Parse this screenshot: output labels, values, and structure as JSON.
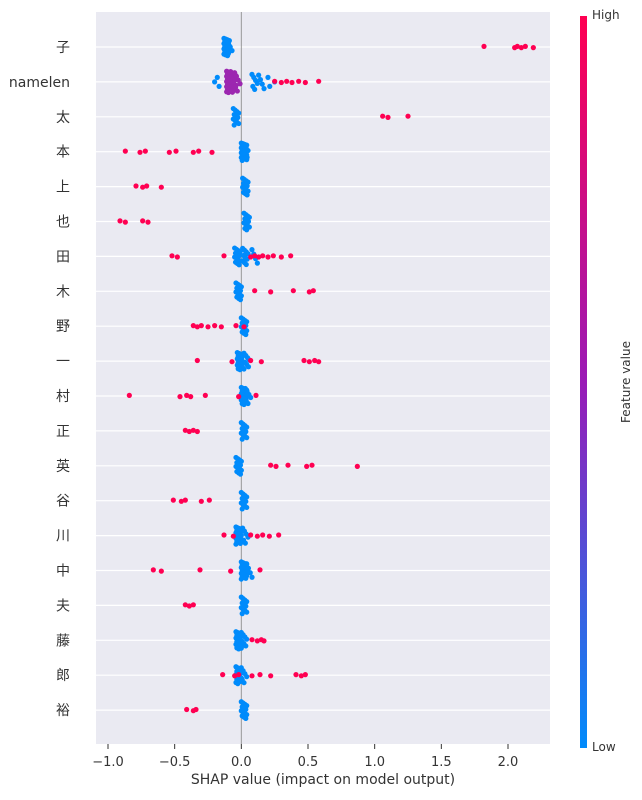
{
  "chart_data": {
    "type": "scatter",
    "subtype": "shap-beeswarm",
    "xlabel": "SHAP value (impact on model output)",
    "xlim": [
      -1.1,
      2.32
    ],
    "xticks": [
      -1.0,
      -0.5,
      0.0,
      0.5,
      1.0,
      1.5,
      2.0
    ],
    "xtick_labels": [
      "−1.0",
      "−0.5",
      "0.0",
      "0.5",
      "1.0",
      "1.5",
      "2.0"
    ],
    "colorbar": {
      "label": "Feature value",
      "high": "High",
      "low": "Low",
      "high_color": "#ff0052",
      "low_color": "#008bfb"
    },
    "background": "#eaeaf2",
    "features": [
      {
        "name": "子",
        "low": [
          [
            -0.11,
            24
          ],
          [
            -0.09,
            5
          ]
        ],
        "high": [
          1.82,
          2.05,
          2.07,
          2.1,
          2.13,
          2.19
        ]
      },
      {
        "name": "namelen",
        "low": [
          [
            -0.18,
            1
          ],
          [
            -0.16,
            2
          ],
          [
            0.1,
            6
          ],
          [
            0.15,
            4
          ],
          [
            0.22,
            2
          ],
          [
            0.27,
            1
          ]
        ],
        "mid": [
          [
            -0.09,
            30
          ],
          [
            -0.06,
            16
          ],
          [
            -0.03,
            6
          ]
        ],
        "high": [
          0.25,
          0.3,
          0.34,
          0.38,
          0.43,
          0.48,
          0.58
        ]
      },
      {
        "name": "太",
        "low": [
          [
            -0.04,
            12
          ]
        ],
        "high": [
          1.06,
          1.1,
          1.25
        ]
      },
      {
        "name": "本",
        "low": [
          [
            0.02,
            26
          ],
          [
            0.03,
            8
          ]
        ],
        "high": [
          -0.87,
          -0.76,
          -0.72,
          -0.54,
          -0.49,
          -0.36,
          -0.32,
          -0.22
        ]
      },
      {
        "name": "上",
        "low": [
          [
            0.03,
            14
          ]
        ],
        "high": [
          -0.79,
          -0.74,
          -0.71,
          -0.6
        ]
      },
      {
        "name": "也",
        "low": [
          [
            0.04,
            13
          ]
        ],
        "high": [
          -0.91,
          -0.87,
          -0.74,
          -0.7
        ]
      },
      {
        "name": "田",
        "low": [
          [
            -0.03,
            14
          ],
          [
            0.03,
            10
          ],
          [
            0.1,
            4
          ]
        ],
        "high": [
          -0.52,
          -0.48,
          -0.13,
          0.07,
          0.1,
          0.13,
          0.16,
          0.2,
          0.24,
          0.3,
          0.37
        ]
      },
      {
        "name": "木",
        "low": [
          [
            -0.02,
            14
          ]
        ],
        "high": [
          0.1,
          0.22,
          0.39,
          0.51,
          0.54
        ]
      },
      {
        "name": "野",
        "low": [
          [
            0.02,
            14
          ]
        ],
        "high": [
          -0.36,
          -0.33,
          -0.3,
          -0.25,
          -0.2,
          -0.15,
          -0.04,
          0.02
        ]
      },
      {
        "name": "一",
        "low": [
          [
            -0.01,
            20
          ],
          [
            0.04,
            8
          ]
        ],
        "high": [
          -0.33,
          -0.07,
          0.07,
          0.15,
          0.47,
          0.51,
          0.55,
          0.58
        ]
      },
      {
        "name": "村",
        "low": [
          [
            0.02,
            20
          ],
          [
            0.05,
            6
          ]
        ],
        "high": [
          -0.84,
          -0.46,
          -0.41,
          -0.38,
          -0.27,
          -0.02,
          0.11
        ]
      },
      {
        "name": "正",
        "low": [
          [
            0.02,
            12
          ]
        ],
        "high": [
          -0.42,
          -0.39,
          -0.36,
          -0.33
        ]
      },
      {
        "name": "英",
        "low": [
          [
            -0.02,
            14
          ]
        ],
        "high": [
          0.22,
          0.26,
          0.35,
          0.49,
          0.53,
          0.87
        ]
      },
      {
        "name": "谷",
        "low": [
          [
            0.02,
            12
          ]
        ],
        "high": [
          -0.51,
          -0.45,
          -0.42,
          -0.3,
          -0.24
        ]
      },
      {
        "name": "川",
        "low": [
          [
            -0.02,
            22
          ],
          [
            0.03,
            6
          ]
        ],
        "high": [
          -0.13,
          -0.06,
          0.07,
          0.12,
          0.16,
          0.21,
          0.28
        ]
      },
      {
        "name": "中",
        "low": [
          [
            0.02,
            22
          ],
          [
            0.06,
            4
          ]
        ],
        "high": [
          -0.66,
          -0.6,
          -0.31,
          -0.08,
          0.14
        ]
      },
      {
        "name": "夫",
        "low": [
          [
            0.02,
            12
          ]
        ],
        "high": [
          -0.42,
          -0.39,
          -0.36
        ]
      },
      {
        "name": "藤",
        "low": [
          [
            -0.02,
            20
          ],
          [
            0.02,
            8
          ]
        ],
        "high": [
          0.08,
          0.12,
          0.15,
          0.17
        ]
      },
      {
        "name": "郎",
        "low": [
          [
            -0.02,
            16
          ],
          [
            0.02,
            6
          ]
        ],
        "high": [
          -0.14,
          -0.05,
          -0.02,
          0.08,
          0.14,
          0.22,
          0.41,
          0.45,
          0.48
        ]
      },
      {
        "name": "裕",
        "low": [
          [
            0.02,
            14
          ]
        ],
        "high": [
          -0.41,
          -0.36,
          -0.34
        ]
      }
    ]
  }
}
